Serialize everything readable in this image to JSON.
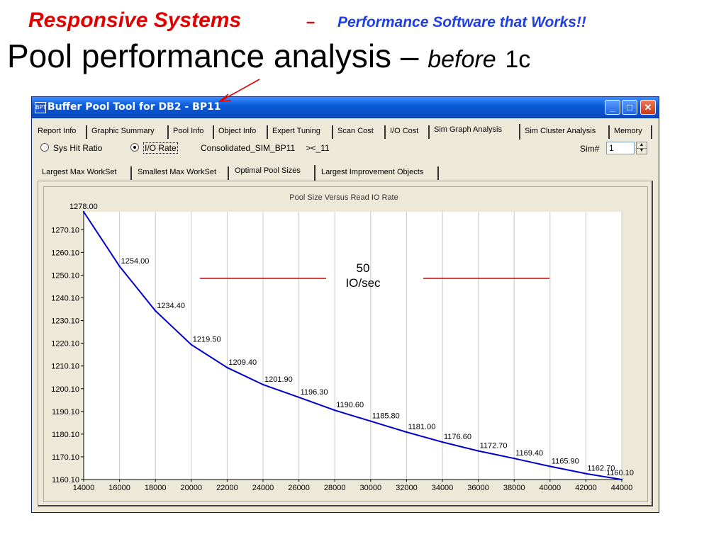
{
  "slide": {
    "brand": "Responsive Systems",
    "dash": "–",
    "tagline": "Performance Software that Works!!",
    "title_main": "Pool performance analysis –",
    "title_emph": "before",
    "title_suffix": "1c"
  },
  "window": {
    "title": "Buffer Pool Tool for DB2 - BP11",
    "icon_text": "BPT",
    "controls": {
      "minimize": "_",
      "maximize": "□",
      "close": "✕"
    }
  },
  "tabs": [
    {
      "label": "Report Info"
    },
    {
      "label": "Graphic Summary"
    },
    {
      "label": "Pool Info"
    },
    {
      "label": "Object Info"
    },
    {
      "label": "Expert Tuning"
    },
    {
      "label": "Scan Cost"
    },
    {
      "label": "I/O Cost"
    },
    {
      "label": "Sim Graph Analysis"
    },
    {
      "label": "Sim Cluster Analysis"
    },
    {
      "label": "Memory"
    }
  ],
  "options": {
    "radio_1": "Sys Hit Ratio",
    "radio_2": "I/O Rate",
    "selected": "I/O Rate",
    "consolidated": "Consolidated_SIM_BP11",
    "range": "><_11",
    "sim_label": "Sim#",
    "sim_value": "1"
  },
  "subtabs": [
    {
      "label": "Largest Max WorkSet"
    },
    {
      "label": "Smallest Max WorkSet"
    },
    {
      "label": "Optimal Pool Sizes"
    },
    {
      "label": "Largest Improvement Objects"
    }
  ],
  "annotation": {
    "line1": "50",
    "line2": "IO/sec"
  },
  "chart_data": {
    "type": "line",
    "title": "Pool Size Versus Read IO Rate",
    "xlabel": "",
    "ylabel": "",
    "x": [
      14000,
      16000,
      18000,
      20000,
      22000,
      24000,
      26000,
      28000,
      30000,
      32000,
      34000,
      36000,
      38000,
      40000,
      42000,
      44000
    ],
    "series": [
      {
        "name": "",
        "values": [
          1278.0,
          1254.0,
          1234.4,
          1219.5,
          1209.4,
          1201.9,
          1196.3,
          1190.6,
          1185.8,
          1181.0,
          1176.6,
          1172.7,
          1169.4,
          1165.9,
          1162.7,
          1160.1
        ]
      }
    ],
    "data_labels": [
      "1278.00",
      "1254.00",
      "1234.40",
      "1219.50",
      "1209.40",
      "1201.90",
      "1196.30",
      "1190.60",
      "1185.80",
      "1181.00",
      "1176.60",
      "1172.70",
      "1169.40",
      "1165.90",
      "1162.70",
      "1160.10"
    ],
    "xticks": [
      "14000",
      "16000",
      "18000",
      "20000",
      "22000",
      "24000",
      "26000",
      "28000",
      "30000",
      "32000",
      "34000",
      "36000",
      "38000",
      "40000",
      "42000",
      "44000"
    ],
    "yticks": [
      "1270.10",
      "1260.10",
      "1250.10",
      "1240.10",
      "1230.10",
      "1220.10",
      "1210.10",
      "1200.10",
      "1190.10",
      "1180.10",
      "1170.10",
      "1160.10"
    ],
    "xlim": [
      14000,
      44000
    ],
    "ylim": [
      1160.1,
      1278.0
    ],
    "grid": "vertical",
    "line_color": "#0000cc",
    "reference_line_color": "#cc0000"
  }
}
